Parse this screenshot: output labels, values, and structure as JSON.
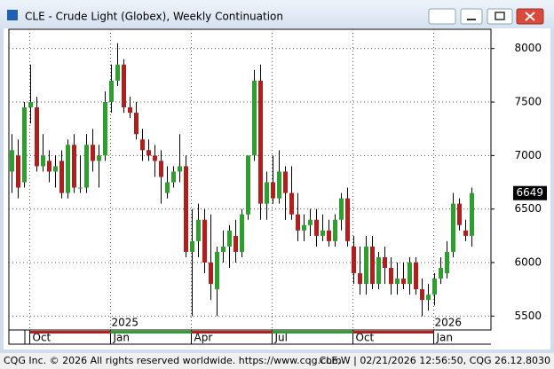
{
  "chart_data": {
    "type": "candlestick",
    "title": "CLE - Crude Light (Globex), Weekly Continuation",
    "categories": [
      null,
      null,
      null,
      "Oct",
      null,
      null,
      null,
      null,
      null,
      null,
      null,
      null,
      null,
      null,
      null,
      null,
      "Jan",
      null,
      null,
      null,
      null,
      null,
      null,
      null,
      null,
      null,
      null,
      null,
      null,
      "Apr",
      null,
      null,
      null,
      null,
      null,
      null,
      null,
      null,
      null,
      null,
      null,
      null,
      "Jul",
      null,
      null,
      null,
      null,
      null,
      null,
      null,
      null,
      null,
      null,
      null,
      null,
      "Oct",
      null,
      null,
      null,
      null,
      null,
      null,
      null,
      null,
      null,
      null,
      null,
      null,
      "Jan",
      null,
      null,
      null,
      null,
      null,
      null
    ],
    "year_labels": [
      null,
      null,
      null,
      null,
      null,
      null,
      null,
      null,
      null,
      null,
      null,
      null,
      null,
      null,
      null,
      null,
      "2025",
      null,
      null,
      null,
      null,
      null,
      null,
      null,
      null,
      null,
      null,
      null,
      null,
      null,
      null,
      null,
      null,
      null,
      null,
      null,
      null,
      null,
      null,
      null,
      null,
      null,
      null,
      null,
      null,
      null,
      null,
      null,
      null,
      null,
      null,
      null,
      null,
      null,
      null,
      null,
      null,
      null,
      null,
      null,
      null,
      null,
      null,
      null,
      null,
      null,
      null,
      null,
      "2026",
      null,
      null,
      null,
      null,
      null,
      null
    ],
    "open": [
      6850,
      7000,
      6750,
      7450,
      7450,
      6900,
      6950,
      6850,
      6950,
      6650,
      7100,
      6700,
      6700,
      7100,
      6950,
      7000,
      7500,
      7700,
      7850,
      7450,
      7400,
      7150,
      7050,
      7000,
      6950,
      6650,
      6750,
      6850,
      6900,
      6100,
      6200,
      6400,
      6000,
      5750,
      6100,
      6150,
      6250,
      6100,
      6450,
      7000,
      7700,
      6550,
      6750,
      6600,
      6850,
      6650,
      6450,
      6300,
      6350,
      6400,
      6250,
      6300,
      6200,
      6400,
      6600,
      6150,
      5900,
      5800,
      6150,
      5800,
      6050,
      5950,
      5800,
      5850,
      5800,
      6000,
      5750,
      5650,
      5700,
      5850,
      5900,
      6100,
      6550,
      6300,
      6250
    ],
    "high": [
      7200,
      7150,
      7500,
      7850,
      7550,
      7200,
      7050,
      7000,
      7050,
      7150,
      7200,
      7000,
      7200,
      7250,
      7100,
      7600,
      7850,
      8050,
      7900,
      7550,
      7500,
      7250,
      7150,
      7100,
      7050,
      6900,
      6900,
      7200,
      7000,
      6500,
      6550,
      6500,
      6450,
      6150,
      6300,
      6350,
      6400,
      6500,
      7000,
      7800,
      7850,
      6850,
      7000,
      7050,
      6900,
      6900,
      6650,
      6450,
      6500,
      6500,
      6450,
      6400,
      6450,
      6650,
      6700,
      6250,
      6150,
      6250,
      6250,
      6100,
      6150,
      6050,
      6000,
      6000,
      6050,
      6050,
      5850,
      5800,
      5900,
      6050,
      6200,
      6650,
      6600,
      6400,
      6700
    ],
    "low": [
      6650,
      6600,
      6700,
      7300,
      6850,
      6850,
      6750,
      6700,
      6600,
      6600,
      6650,
      6650,
      6650,
      6850,
      6700,
      6950,
      7400,
      7650,
      7400,
      7350,
      7150,
      6950,
      6950,
      6800,
      6550,
      6600,
      6700,
      6750,
      6050,
      5500,
      6050,
      5900,
      5650,
      5500,
      6000,
      5950,
      6000,
      6050,
      6400,
      6950,
      6400,
      6400,
      6550,
      6550,
      6400,
      6400,
      6200,
      6200,
      6250,
      6150,
      6200,
      6150,
      6150,
      6300,
      6150,
      5800,
      5700,
      5700,
      5750,
      5750,
      5800,
      5700,
      5700,
      5750,
      5700,
      5700,
      5500,
      5550,
      5600,
      5800,
      5850,
      6050,
      6300,
      6200,
      6150
    ],
    "close": [
      7050,
      6700,
      7450,
      7500,
      6900,
      7000,
      6850,
      6900,
      6650,
      7100,
      6700,
      6700,
      7100,
      6950,
      7000,
      7500,
      7700,
      7850,
      7450,
      7400,
      7200,
      7050,
      7000,
      6950,
      6800,
      6750,
      6850,
      6900,
      6100,
      6200,
      6400,
      6000,
      5800,
      6100,
      6150,
      6300,
      6100,
      6450,
      7000,
      7700,
      6550,
      6750,
      6600,
      6850,
      6650,
      6450,
      6300,
      6350,
      6400,
      6250,
      6300,
      6200,
      6400,
      6600,
      6200,
      5900,
      5800,
      6150,
      5800,
      6050,
      5950,
      5800,
      5850,
      5800,
      6000,
      5750,
      5650,
      5700,
      5850,
      5950,
      6100,
      6550,
      6350,
      6250,
      6649
    ],
    "up_color": "#2e9e2e",
    "down_color": "#b01e1e",
    "ylim": [
      5370,
      8180
    ],
    "yticks": [
      5500,
      6000,
      6500,
      7000,
      7500,
      8000
    ],
    "grid": true,
    "last_price": 6649
  },
  "footer": {
    "left": "CQG Inc. © 2026 All rights reserved worldwide. https://www.cqg.com",
    "right": "CLE,W | 02/21/2026 12:56:50, CQG 26.12.8030"
  }
}
